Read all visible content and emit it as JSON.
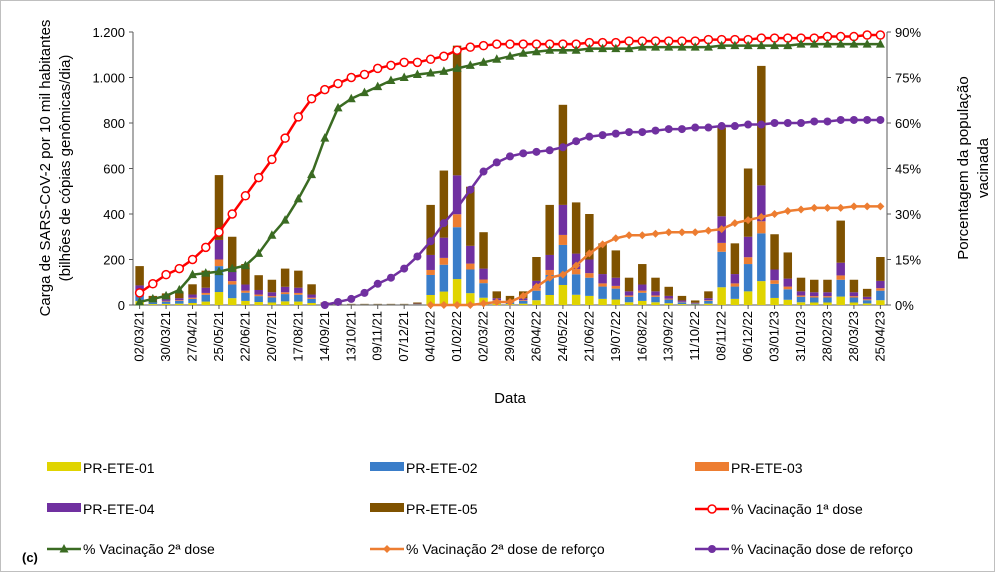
{
  "chart_data": {
    "type": "bar-line",
    "panel_label": "(c)",
    "x_label": "Data",
    "y_label": [
      "Carga de SARS-CoV-2 por 10 mil habitantes",
      "(bilhões de cópias genômicas/dia)"
    ],
    "y2_label": [
      "Porcentagem da população",
      "vacinada"
    ],
    "categories": [
      "02/03/21",
      null,
      "30/03/21",
      null,
      "27/04/21",
      null,
      "25/05/21",
      null,
      "22/06/21",
      null,
      "20/07/21",
      null,
      "17/08/21",
      null,
      "14/09/21",
      null,
      "13/10/21",
      null,
      "09/11/21",
      null,
      "07/12/21",
      null,
      "04/01/22",
      null,
      "01/02/22",
      null,
      "02/03/22",
      null,
      "29/03/22",
      null,
      "26/04/22",
      null,
      "24/05/22",
      null,
      "21/06/22",
      null,
      "19/07/22",
      null,
      "16/08/22",
      null,
      "13/09/22",
      null,
      "11/10/22",
      null,
      "08/11/22",
      null,
      "06/12/22",
      null,
      "03/01/23",
      null,
      "31/01/23",
      null,
      "28/02/23",
      null,
      "28/03/23",
      null,
      "25/04/23"
    ],
    "ylim": [
      0,
      1200
    ],
    "yticks": [
      0,
      200,
      400,
      600,
      800,
      {
        "value": 1000,
        "label": "1.000"
      },
      {
        "value": 1200,
        "label": "1.200"
      }
    ],
    "y2lim": [
      0,
      90
    ],
    "y2ticks": [
      {
        "value": 0,
        "label": "0%"
      },
      {
        "value": 15,
        "label": "15%"
      },
      {
        "value": 30,
        "label": "30%"
      },
      {
        "value": 45,
        "label": "45%"
      },
      {
        "value": 60,
        "label": "60%"
      },
      {
        "value": 75,
        "label": "75%"
      },
      {
        "value": 90,
        "label": "90%"
      }
    ],
    "series": [
      {
        "name": "PR-ETE-01",
        "type": "bar",
        "color": "#e0d400",
        "values": [
          17,
          4,
          5,
          6,
          9,
          15,
          57,
          30,
          18,
          13,
          11,
          16,
          15,
          9,
          1,
          1,
          1,
          1,
          1,
          1,
          1,
          1,
          44,
          59,
          114,
          52,
          32,
          6,
          4,
          6,
          21,
          44,
          88,
          45,
          40,
          27,
          24,
          12,
          18,
          12,
          8,
          4,
          2,
          6,
          78,
          27,
          60,
          105,
          31,
          23,
          12,
          11,
          11,
          37,
          11,
          7,
          21
        ]
      },
      {
        "name": "PR-ETE-02",
        "type": "bar",
        "color": "#3a7dc9",
        "values": [
          34,
          8,
          10,
          12,
          18,
          30,
          114,
          60,
          36,
          26,
          22,
          32,
          30,
          18,
          2,
          1,
          1,
          1,
          1,
          1,
          1,
          2,
          88,
          118,
          228,
          104,
          64,
          12,
          8,
          12,
          42,
          88,
          176,
          90,
          80,
          54,
          48,
          24,
          36,
          24,
          16,
          8,
          4,
          12,
          156,
          54,
          120,
          210,
          62,
          46,
          24,
          22,
          22,
          74,
          22,
          14,
          42
        ]
      },
      {
        "name": "PR-ETE-03",
        "type": "bar",
        "color": "#ed7d31",
        "values": [
          9,
          2,
          3,
          3,
          5,
          8,
          29,
          15,
          9,
          7,
          6,
          8,
          8,
          5,
          1,
          0,
          0,
          0,
          0,
          0,
          0,
          1,
          22,
          30,
          57,
          26,
          16,
          3,
          2,
          3,
          11,
          22,
          44,
          23,
          20,
          14,
          12,
          6,
          9,
          6,
          4,
          2,
          1,
          3,
          39,
          14,
          30,
          53,
          16,
          12,
          6,
          6,
          6,
          19,
          6,
          4,
          11
        ]
      },
      {
        "name": "PR-ETE-04",
        "type": "bar",
        "color": "#7030a0",
        "values": [
          26,
          6,
          8,
          9,
          14,
          23,
          86,
          45,
          27,
          20,
          17,
          24,
          23,
          14,
          2,
          1,
          1,
          1,
          1,
          1,
          1,
          2,
          66,
          89,
          171,
          78,
          48,
          9,
          6,
          9,
          32,
          66,
          132,
          68,
          60,
          41,
          36,
          18,
          27,
          18,
          12,
          6,
          3,
          9,
          117,
          41,
          90,
          158,
          47,
          35,
          18,
          17,
          17,
          56,
          17,
          11,
          32
        ]
      },
      {
        "name": "PR-ETE-05",
        "type": "bar",
        "color": "#7f5200",
        "values": [
          85,
          20,
          25,
          30,
          45,
          75,
          285,
          150,
          90,
          65,
          55,
          80,
          75,
          45,
          5,
          2,
          2,
          2,
          2,
          2,
          2,
          5,
          220,
          295,
          570,
          260,
          160,
          30,
          20,
          30,
          105,
          220,
          440,
          225,
          200,
          135,
          120,
          60,
          90,
          60,
          40,
          20,
          10,
          30,
          390,
          135,
          300,
          525,
          155,
          115,
          60,
          55,
          55,
          185,
          55,
          35,
          105
        ]
      },
      {
        "name": "% Vacinação 1ª dose",
        "type": "line",
        "axis": "y2",
        "marker": "open-circle",
        "color": "#ff0000",
        "values": [
          4,
          7,
          10,
          12,
          15,
          19,
          24,
          30,
          36,
          42,
          48,
          55,
          62,
          68,
          71,
          73,
          75,
          76,
          78,
          79,
          80,
          80,
          81,
          82,
          84,
          85,
          85.5,
          86,
          86,
          86,
          86,
          86,
          86,
          86,
          86.5,
          86.5,
          86.5,
          87,
          87,
          87,
          87,
          87,
          87,
          87.5,
          87.5,
          87.5,
          87.5,
          88,
          88,
          88,
          88,
          88,
          88.5,
          88.5,
          88.5,
          89,
          89
        ]
      },
      {
        "name": "% Vacinação 2ª dose",
        "type": "line",
        "axis": "y2",
        "marker": "triangle",
        "color": "#3a6b22",
        "values": [
          1,
          2,
          3,
          5,
          10,
          10.5,
          11,
          12,
          13,
          17,
          23,
          28,
          35,
          43,
          55,
          65,
          68,
          70,
          72,
          74,
          75,
          76,
          76.5,
          77,
          78,
          79,
          80,
          81,
          82,
          83,
          83.5,
          84,
          84,
          84,
          84.5,
          84.5,
          84.5,
          84.5,
          85,
          85,
          85,
          85,
          85,
          85,
          85.5,
          85.5,
          85.5,
          85.5,
          85.5,
          85.5,
          86,
          86,
          86,
          86,
          86,
          86,
          86
        ]
      },
      {
        "name": "% Vacinação 2ª dose de reforço",
        "type": "line",
        "axis": "y2",
        "marker": "diamond",
        "color": "#ed7d31",
        "values": [
          null,
          null,
          null,
          null,
          null,
          null,
          null,
          null,
          null,
          null,
          null,
          null,
          null,
          null,
          null,
          null,
          null,
          null,
          null,
          null,
          null,
          null,
          0,
          0,
          0,
          0,
          0.5,
          1,
          1,
          3,
          6,
          9,
          10,
          13,
          17,
          20,
          22,
          23,
          23,
          23.5,
          24,
          24,
          24,
          24.5,
          25,
          27,
          28,
          29,
          30,
          31,
          31.5,
          32,
          32,
          32,
          32.5,
          32.5,
          32.5
        ]
      },
      {
        "name": "% Vacinação dose de reforço",
        "type": "line",
        "axis": "y2",
        "marker": "circle",
        "color": "#7030a0",
        "values": [
          null,
          null,
          null,
          null,
          null,
          null,
          null,
          null,
          null,
          null,
          null,
          null,
          null,
          null,
          0,
          1,
          2,
          4,
          7,
          9,
          12,
          16,
          21,
          27,
          32,
          38,
          44,
          47,
          49,
          50,
          50.5,
          51,
          52,
          54,
          55.5,
          56,
          56.5,
          57,
          57,
          57.5,
          58,
          58,
          58.5,
          58.5,
          59,
          59,
          59.5,
          59.5,
          60,
          60,
          60,
          60.5,
          60.5,
          61,
          61,
          61,
          61
        ]
      }
    ]
  }
}
